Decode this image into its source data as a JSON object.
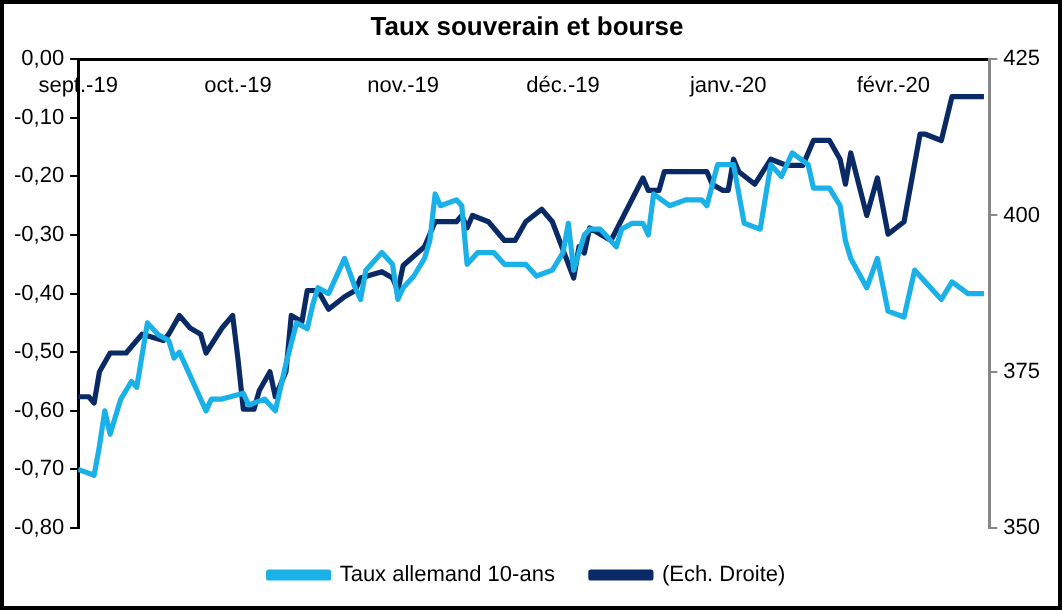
{
  "chart_data": {
    "type": "line",
    "title": "Taux souverain et bourse",
    "legend": "bottom",
    "marker": "none",
    "line_style": "solid",
    "xlim": [
      "2019-09-01",
      "2020-02-19"
    ],
    "xticks": [
      {
        "value": "2019-09-01",
        "label": "sept.-19"
      },
      {
        "value": "2019-10-01",
        "label": "oct.-19"
      },
      {
        "value": "2019-11-01",
        "label": "nov.-19"
      },
      {
        "value": "2019-12-01",
        "label": "déc.-19"
      },
      {
        "value": "2020-01-01",
        "label": "janv.-20"
      },
      {
        "value": "2020-02-01",
        "label": "févr.-20"
      }
    ],
    "ylim": [
      -0.8,
      0
    ],
    "yticks": [
      {
        "value": 0,
        "label": "0,00"
      },
      {
        "value": -0.1,
        "label": "-0,10"
      },
      {
        "value": -0.2,
        "label": "-0,20"
      },
      {
        "value": -0.3,
        "label": "-0,30"
      },
      {
        "value": -0.4,
        "label": "-0,40"
      },
      {
        "value": -0.5,
        "label": "-0,50"
      },
      {
        "value": -0.6,
        "label": "-0,60"
      },
      {
        "value": -0.7,
        "label": "-0,70"
      },
      {
        "value": -0.8,
        "label": "-0,80"
      }
    ],
    "y2lim": [
      350,
      425
    ],
    "y2ticks": [
      350,
      375,
      400,
      425
    ],
    "series": [
      {
        "name": "Taux allemand 10-ans",
        "color": "#1ab0e8",
        "x": [
          "2019-09-01",
          "2019-09-04",
          "2019-09-05",
          "2019-09-06",
          "2019-09-07",
          "2019-09-09",
          "2019-09-11",
          "2019-09-12",
          "2019-09-14",
          "2019-09-16",
          "2019-09-18",
          "2019-09-19",
          "2019-09-20",
          "2019-09-25",
          "2019-09-26",
          "2019-09-28",
          "2019-10-02",
          "2019-10-03",
          "2019-10-06",
          "2019-10-07",
          "2019-10-08",
          "2019-10-10",
          "2019-10-12",
          "2019-10-14",
          "2019-10-15",
          "2019-10-16",
          "2019-10-18",
          "2019-10-21",
          "2019-10-23",
          "2019-10-24",
          "2019-10-25",
          "2019-10-28",
          "2019-10-30",
          "2019-10-31",
          "2019-11-01",
          "2019-11-03",
          "2019-11-05",
          "2019-11-06",
          "2019-11-07",
          "2019-11-08",
          "2019-11-11",
          "2019-11-12",
          "2019-11-13",
          "2019-11-15",
          "2019-11-18",
          "2019-11-20",
          "2019-11-22",
          "2019-11-24",
          "2019-11-26",
          "2019-11-29",
          "2019-12-01",
          "2019-12-02",
          "2019-12-03",
          "2019-12-05",
          "2019-12-06",
          "2019-12-08",
          "2019-12-11",
          "2019-12-12",
          "2019-12-14",
          "2019-12-16",
          "2019-12-17",
          "2019-12-18",
          "2019-12-21",
          "2019-12-24",
          "2019-12-27",
          "2019-12-28",
          "2019-12-30",
          "2020-01-02",
          "2020-01-04",
          "2020-01-07",
          "2020-01-09",
          "2020-01-11",
          "2020-01-13",
          "2020-01-16",
          "2020-01-17",
          "2020-01-20",
          "2020-01-22",
          "2020-01-23",
          "2020-01-24",
          "2020-01-27",
          "2020-01-29",
          "2020-01-31",
          "2020-02-03",
          "2020-02-05",
          "2020-02-07",
          "2020-02-10",
          "2020-02-12",
          "2020-02-15",
          "2020-02-18"
        ],
        "values": [
          -0.7,
          -0.71,
          -0.66,
          -0.6,
          -0.64,
          -0.58,
          -0.55,
          -0.56,
          -0.45,
          -0.47,
          -0.48,
          -0.51,
          -0.5,
          -0.6,
          -0.58,
          -0.58,
          -0.57,
          -0.59,
          -0.58,
          -0.59,
          -0.6,
          -0.52,
          -0.45,
          -0.46,
          -0.42,
          -0.39,
          -0.4,
          -0.34,
          -0.39,
          -0.41,
          -0.36,
          -0.33,
          -0.35,
          -0.41,
          -0.39,
          -0.37,
          -0.34,
          -0.31,
          -0.23,
          -0.25,
          -0.24,
          -0.25,
          -0.35,
          -0.33,
          -0.33,
          -0.35,
          -0.35,
          -0.35,
          -0.37,
          -0.36,
          -0.33,
          -0.28,
          -0.36,
          -0.3,
          -0.29,
          -0.29,
          -0.32,
          -0.29,
          -0.28,
          -0.28,
          -0.3,
          -0.23,
          -0.25,
          -0.24,
          -0.24,
          -0.25,
          -0.18,
          -0.18,
          -0.28,
          -0.29,
          -0.18,
          -0.2,
          -0.16,
          -0.18,
          -0.22,
          -0.22,
          -0.25,
          -0.31,
          -0.34,
          -0.39,
          -0.34,
          -0.43,
          -0.44,
          -0.36,
          -0.38,
          -0.41,
          -0.38,
          -0.4,
          -0.4
        ]
      },
      {
        "name": "(Ech. Droite)",
        "color": "#0a2a66",
        "axis": "y2",
        "x": [
          "2019-09-01",
          "2019-09-03",
          "2019-09-04",
          "2019-09-05",
          "2019-09-07",
          "2019-09-10",
          "2019-09-11",
          "2019-09-13",
          "2019-09-17",
          "2019-09-18",
          "2019-09-20",
          "2019-09-22",
          "2019-09-24",
          "2019-09-25",
          "2019-09-28",
          "2019-09-30",
          "2019-10-01",
          "2019-10-02",
          "2019-10-04",
          "2019-10-05",
          "2019-10-07",
          "2019-10-08",
          "2019-10-10",
          "2019-10-11",
          "2019-10-13",
          "2019-10-14",
          "2019-10-16",
          "2019-10-18",
          "2019-10-21",
          "2019-10-23",
          "2019-10-24",
          "2019-10-28",
          "2019-10-30",
          "2019-10-31",
          "2019-11-01",
          "2019-11-05",
          "2019-11-07",
          "2019-11-08",
          "2019-11-11",
          "2019-11-12",
          "2019-11-13",
          "2019-11-14",
          "2019-11-17",
          "2019-11-20",
          "2019-11-22",
          "2019-11-24",
          "2019-11-27",
          "2019-11-29",
          "2019-12-03",
          "2019-12-04",
          "2019-12-05",
          "2019-12-06",
          "2019-12-10",
          "2019-12-13",
          "2019-12-16",
          "2019-12-17",
          "2019-12-19",
          "2019-12-20",
          "2019-12-26",
          "2019-12-28",
          "2019-12-29",
          "2019-12-31",
          "2020-01-01",
          "2020-01-02",
          "2020-01-03",
          "2020-01-06",
          "2020-01-09",
          "2020-01-12",
          "2020-01-15",
          "2020-01-17",
          "2020-01-20",
          "2020-01-22",
          "2020-01-23",
          "2020-01-24",
          "2020-01-27",
          "2020-01-29",
          "2020-01-31",
          "2020-02-03",
          "2020-02-06",
          "2020-02-07",
          "2020-02-10",
          "2020-02-12",
          "2020-02-14",
          "2020-02-18"
        ],
        "values": [
          371,
          371,
          370,
          375,
          378,
          378,
          379,
          381,
          380,
          381,
          384,
          382,
          381,
          378,
          382,
          384,
          377,
          369,
          369,
          372,
          375,
          371,
          375,
          384,
          383,
          388,
          388,
          385,
          387,
          388,
          390,
          391,
          390,
          388,
          392,
          395,
          399,
          399,
          399,
          400,
          398,
          400,
          399,
          396,
          396,
          399,
          401,
          399,
          390,
          395,
          394,
          398,
          396,
          401,
          406,
          404,
          404,
          407,
          407,
          407,
          405,
          404,
          404,
          409,
          407,
          405,
          409,
          408,
          408,
          412,
          412,
          409,
          405,
          410,
          400,
          406,
          397,
          399,
          413,
          413,
          412,
          419,
          419,
          419
        ]
      }
    ]
  }
}
